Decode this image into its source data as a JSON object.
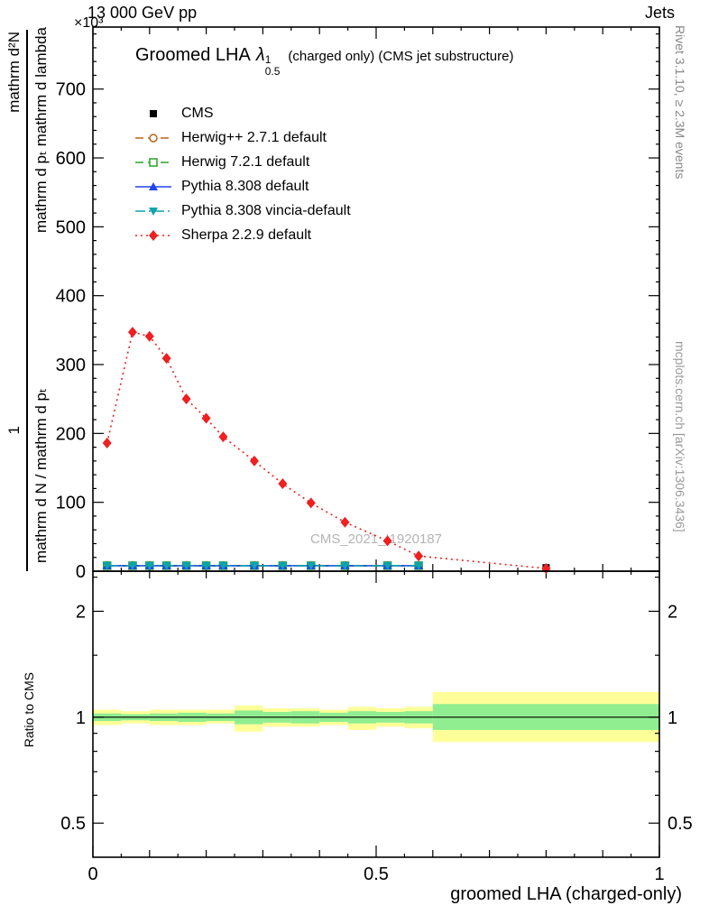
{
  "header": {
    "left": "13 000 GeV pp",
    "right": "Jets"
  },
  "y_scale_multiplier": "×10³",
  "title": {
    "main": "Groomed LHA",
    "lambda": "λ",
    "sup": "1",
    "sub": "0.5",
    "suffix": "(charged only) (CMS jet substructure)"
  },
  "watermark": "CMS_2021_I1920187",
  "side_notes": {
    "top_right": "Rivet 3.1.10, ≥ 2.3M events",
    "bottom_right": "mcplots.cern.ch [arXiv:1306.3436]"
  },
  "y_axis_label": {
    "outer_top": "mathrm d²N",
    "inner_top": "mathrm d pₜ mathrm d lambda",
    "outer_bottom": "1",
    "inner_bottom": "mathrm d N / mathrm d pₜ"
  },
  "ratio_axis_label": "Ratio to CMS",
  "x_axis_label": "groomed LHA (charged-only)",
  "chart_data": {
    "type": "line",
    "title": "Groomed LHA λ¹₀.₅ (charged only) (CMS jet substructure)",
    "xlabel": "groomed LHA (charged-only)",
    "ylabel": "1/(dN/dpₜ) d²N/(dpₜ dλ)",
    "y_multiplier": 1000,
    "xlim": [
      0,
      1
    ],
    "ylim": [
      0,
      790
    ],
    "x_major": [
      0,
      0.5,
      1
    ],
    "x_major_labels": [
      "0",
      "0.5",
      "1"
    ],
    "x_minor_step": 0.05,
    "y_major_step": 100,
    "y_major_max": 700,
    "y_minor_step": 20,
    "legend_position": "top-left",
    "grid": false,
    "series": [
      {
        "id": "cms",
        "label": "CMS",
        "color": "#000000",
        "marker": "square",
        "line": "none",
        "x": [
          0.025,
          0.07,
          0.1,
          0.13,
          0.165,
          0.2,
          0.23,
          0.285,
          0.335,
          0.385,
          0.445,
          0.52,
          0.575,
          0.8
        ],
        "y": [
          8,
          8,
          8,
          8,
          8,
          8,
          8,
          8,
          8,
          8,
          8,
          8,
          8,
          5
        ]
      },
      {
        "id": "herwigpp",
        "label": "Herwig++ 2.7.1 default",
        "color": "#b5651d",
        "marker": "circle-open",
        "line": "dashed",
        "x": [
          0.025,
          0.07,
          0.1,
          0.13,
          0.165,
          0.2,
          0.23,
          0.285,
          0.335,
          0.385,
          0.445,
          0.52,
          0.575
        ],
        "y": [
          8,
          8,
          8,
          8,
          8,
          8,
          8,
          8,
          8,
          8,
          8,
          8,
          8
        ]
      },
      {
        "id": "herwig7",
        "label": "Herwig 7.2.1 default",
        "color": "#2ca02c",
        "marker": "square-open",
        "line": "dashed",
        "x": [
          0.025,
          0.07,
          0.1,
          0.13,
          0.165,
          0.2,
          0.23,
          0.285,
          0.335,
          0.385,
          0.445,
          0.52,
          0.575
        ],
        "y": [
          8,
          8,
          8,
          8,
          8,
          8,
          8,
          8,
          8,
          8,
          8,
          8,
          8
        ]
      },
      {
        "id": "pythia",
        "label": "Pythia 8.308 default",
        "color": "#2244ee",
        "marker": "triangle-up",
        "line": "solid",
        "x": [
          0.025,
          0.07,
          0.1,
          0.13,
          0.165,
          0.2,
          0.23,
          0.285,
          0.335,
          0.385,
          0.445,
          0.52,
          0.575
        ],
        "y": [
          8,
          8,
          8,
          8,
          8,
          8,
          8,
          8,
          8,
          8,
          8,
          8,
          8
        ]
      },
      {
        "id": "vincia",
        "label": "Pythia 8.308 vincia-default",
        "color": "#0fa3ad",
        "marker": "triangle-down",
        "line": "dashdot",
        "x": [
          0.025,
          0.07,
          0.1,
          0.13,
          0.165,
          0.2,
          0.23,
          0.285,
          0.335,
          0.385,
          0.445,
          0.52,
          0.575
        ],
        "y": [
          8,
          8,
          8,
          8,
          8,
          8,
          8,
          8,
          8,
          8,
          8,
          8,
          8
        ]
      },
      {
        "id": "sherpa",
        "label": "Sherpa 2.2.9 default",
        "color": "#ee2020",
        "marker": "diamond",
        "line": "dotted",
        "x": [
          0.025,
          0.07,
          0.1,
          0.13,
          0.165,
          0.2,
          0.23,
          0.285,
          0.335,
          0.385,
          0.445,
          0.52,
          0.575,
          0.8
        ],
        "y": [
          186,
          347,
          341,
          309,
          250,
          222,
          195,
          160,
          127,
          99,
          71,
          44,
          22,
          4
        ]
      }
    ],
    "ratio": {
      "label": "Ratio to CMS",
      "scale": "log",
      "ylim": [
        0.4,
        2.6
      ],
      "major": [
        0.5,
        1,
        2
      ],
      "major_labels": [
        "0.5",
        "1",
        "2"
      ],
      "minor": [
        0.6,
        0.7,
        0.8,
        0.9,
        1.5,
        2.5
      ],
      "ref_line": 1,
      "yellow_color": "#ffff99",
      "green_color": "#90ee90",
      "band_edges": [
        0,
        0.05,
        0.1,
        0.15,
        0.2,
        0.25,
        0.3,
        0.35,
        0.4,
        0.45,
        0.5,
        0.55,
        0.6,
        1.0
      ],
      "yellow": [
        [
          0.95,
          1.05
        ],
        [
          0.96,
          1.04
        ],
        [
          0.95,
          1.05
        ],
        [
          0.95,
          1.05
        ],
        [
          0.96,
          1.05
        ],
        [
          0.91,
          1.08
        ],
        [
          0.94,
          1.06
        ],
        [
          0.94,
          1.06
        ],
        [
          0.95,
          1.05
        ],
        [
          0.92,
          1.07
        ],
        [
          0.94,
          1.06
        ],
        [
          0.93,
          1.07
        ],
        [
          0.85,
          1.18
        ]
      ],
      "green": [
        [
          0.975,
          1.025
        ],
        [
          0.98,
          1.02
        ],
        [
          0.975,
          1.025
        ],
        [
          0.97,
          1.03
        ],
        [
          0.975,
          1.025
        ],
        [
          0.955,
          1.045
        ],
        [
          0.965,
          1.035
        ],
        [
          0.96,
          1.04
        ],
        [
          0.97,
          1.03
        ],
        [
          0.96,
          1.04
        ],
        [
          0.965,
          1.035
        ],
        [
          0.96,
          1.04
        ],
        [
          0.92,
          1.09
        ]
      ]
    }
  }
}
